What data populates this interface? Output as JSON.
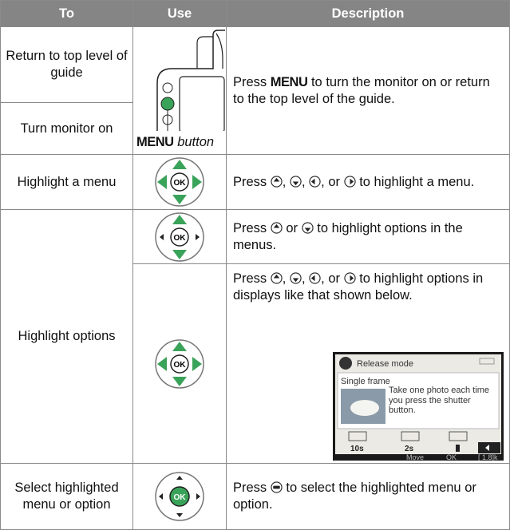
{
  "header": {
    "to": "To",
    "use": "Use",
    "description": "Description"
  },
  "rows": [
    {
      "to": "Return to top level of guide",
      "to_2": "Turn monitor on",
      "use_label": {
        "key": "MENU",
        "text": "button"
      },
      "description": [
        "Press",
        "MENU",
        "to turn the monitor on or return to the top level of the guide."
      ]
    },
    {
      "to": "Highlight a menu",
      "description": [
        "Press",
        ",",
        ",",
        ", or",
        "to highlight a menu."
      ]
    },
    {
      "to": "Highlight options",
      "description": [
        "Press",
        "or",
        "to highlight options in the menus."
      ],
      "description_2": [
        "Press",
        ",",
        ",",
        ", or",
        "to highlight options in displays like that shown below."
      ]
    },
    {
      "to": "Select highlighted menu or option",
      "description": [
        "Press",
        "to select the highlighted menu or option."
      ]
    }
  ],
  "screen": {
    "title": "Release mode",
    "option": "Single frame",
    "text": "Take one photo each time you press the shutter button.",
    "timer": "10s",
    "remote": "2s",
    "move": "Move",
    "ok": "OK",
    "count": "[ 1.8]k"
  }
}
